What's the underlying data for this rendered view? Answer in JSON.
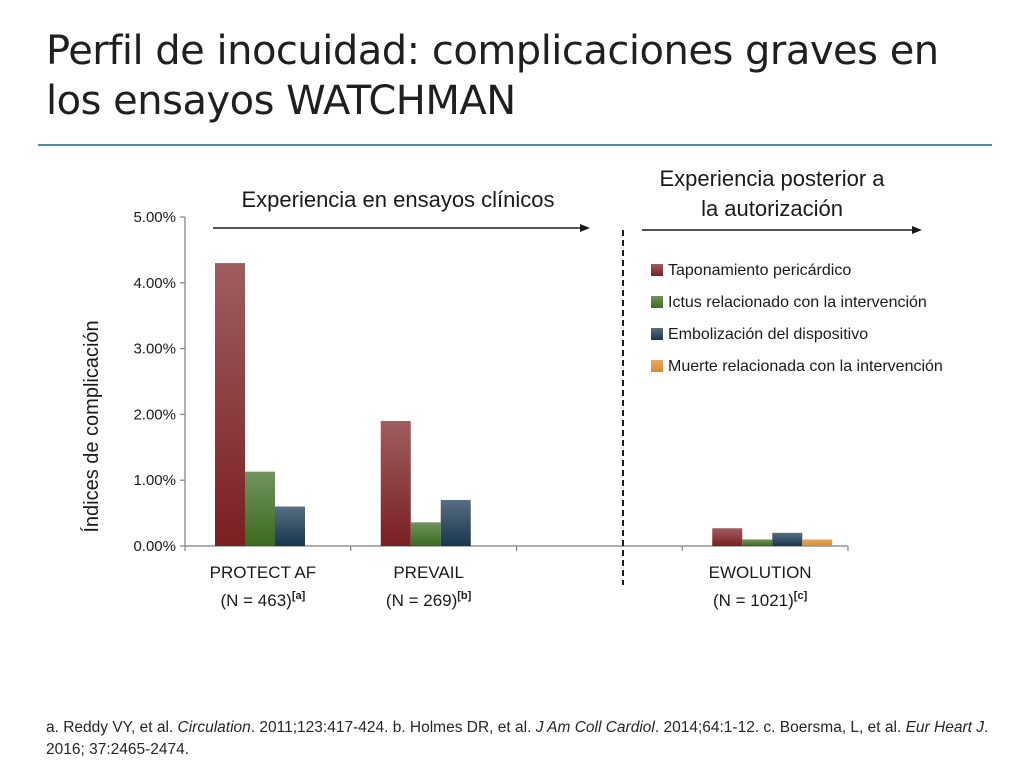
{
  "slide": {
    "title_line1": "Perfil de inocuidad: complicaciones graves en",
    "title_line2": "los ensayos WATCHMAN"
  },
  "colors": {
    "title_rule": "#4a8ea8",
    "taponamiento": "#7a1f22",
    "ictus": "#3b6a1e",
    "embolizacion": "#17364f",
    "muerte": "#d98a2b"
  },
  "chart_data": {
    "type": "bar",
    "ylabel": "Índices de complicación",
    "ylim": [
      0,
      5
    ],
    "yticks": [
      "0.00%",
      "1.00%",
      "2.00%",
      "3.00%",
      "4.00%",
      "5.00%"
    ],
    "grid": false,
    "legend_position": "top-right",
    "categories": [
      {
        "name": "PROTECT AF",
        "n_label": "(N = 463)",
        "ref": "[a]"
      },
      {
        "name": "PREVAIL",
        "n_label": "(N = 269)",
        "ref": "[b]"
      },
      {
        "name": "",
        "n_label": "",
        "ref": ""
      },
      {
        "name": "EWOLUTION",
        "n_label": "(N = 1021)",
        "ref": "[c]"
      }
    ],
    "series": [
      {
        "name": "Taponamiento pericárdico",
        "color": "#7a1f22",
        "values": [
          4.3,
          1.9,
          null,
          0.27
        ]
      },
      {
        "name": "Ictus relacionado con la intervención",
        "color": "#3b6a1e",
        "values": [
          1.13,
          0.36,
          null,
          0.1
        ]
      },
      {
        "name": "Embolización del dispositivo",
        "color": "#17364f",
        "values": [
          0.6,
          0.7,
          null,
          0.2
        ]
      },
      {
        "name": "Muerte relacionada con la intervención",
        "color": "#d98a2b",
        "values": [
          null,
          null,
          null,
          0.1
        ]
      }
    ],
    "annotations": {
      "clinical": "Experiencia en ensayos clínicos",
      "post_line1": "Experiencia posterior a",
      "post_line2": "la autorización"
    }
  },
  "footnote": {
    "a_pre": "a. Reddy VY, et al. ",
    "a_journal": "Circulation",
    "a_post": ". 2011;123:417-424. b. Holmes DR, et al. ",
    "b_journal": "J Am Coll Cardiol",
    "b_post": ". 2014;64:1-12. c. Boersma, L, et al. ",
    "c_journal": "Eur Heart J",
    "c_post": ". 2016; 37:2465-2474."
  }
}
